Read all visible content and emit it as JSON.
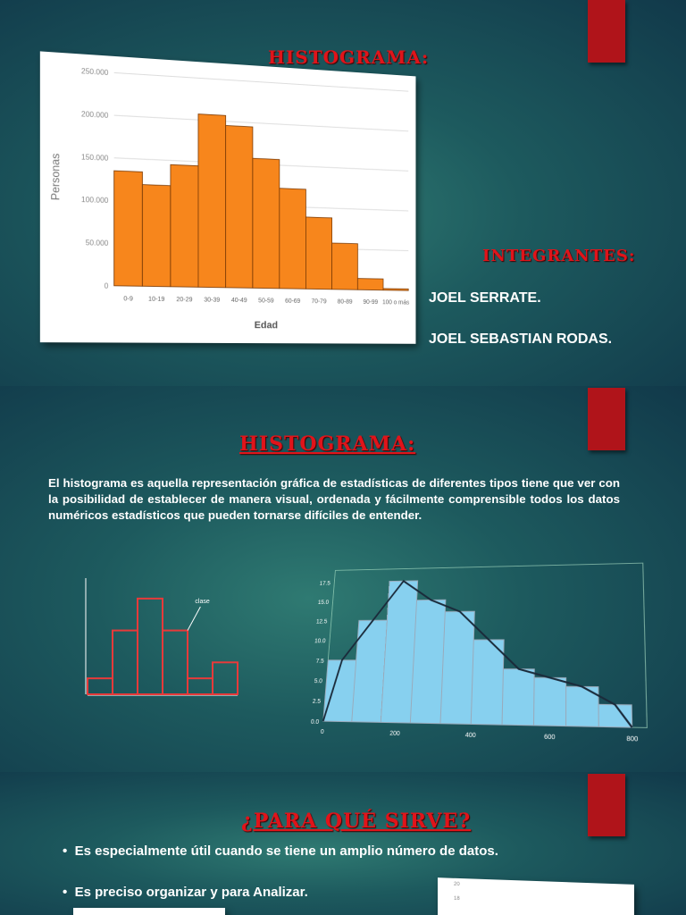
{
  "slide1": {
    "title": "HISTOGRAMA:",
    "members_title": "INTEGRANTES:",
    "members": [
      "JOEL SERRATE.",
      "JOEL SEBASTIAN  RODAS."
    ]
  },
  "slide2": {
    "title": "HISTOGRAMA:",
    "paragraph": "El histograma es aquella representación gráfica de estadísticas de diferentes tipos tiene que ver con la posibilidad de establecer de manera visual, ordenada y fácilmente comprensible todos los datos numéricos estadísticos que pueden tornarse difíciles de entender."
  },
  "slide3": {
    "title": "¿PARA QUÉ SIRVE?",
    "bullets": [
      "Es especialmente útil cuando se tiene un amplio número de datos.",
      "Es preciso organizar y para Analizar."
    ],
    "partial_ticks": [
      "20",
      "18"
    ]
  },
  "colors": {
    "accent_red": "#b0141a",
    "title_red": "#e0141a",
    "bar_orange": "#f7861c",
    "bar_blue": "#87d0ef",
    "outline_red": "#e83a3a"
  },
  "chart_data": [
    {
      "type": "bar",
      "xlabel": "Edad",
      "ylabel": "Personas",
      "categories": [
        "0-9",
        "10-19",
        "20-29",
        "30-39",
        "40-49",
        "50-59",
        "60-69",
        "70-79",
        "80-89",
        "90-99",
        "100 o más"
      ],
      "values": [
        135000,
        120000,
        145000,
        207000,
        195000,
        157000,
        122000,
        88000,
        57000,
        14000,
        2000
      ],
      "ylim": [
        0,
        250000
      ],
      "yticks": [
        "0",
        "50.000",
        "100.000",
        "150.000",
        "200.000",
        "250.000"
      ],
      "grid": true
    },
    {
      "type": "bar",
      "values": [
        1,
        4,
        6,
        4,
        1,
        2
      ],
      "ylim": [
        0,
        7
      ],
      "annotation": "clase"
    },
    {
      "type": "bar",
      "values": [
        7.5,
        12.5,
        17.5,
        15,
        13.5,
        10,
        6.5,
        5.5,
        4.5,
        2.5
      ],
      "ylim": [
        0,
        17.5
      ],
      "yticks": [
        "0.0",
        "2.5",
        "5.0",
        "7.5",
        "10.0",
        "12.5",
        "15.0",
        "17.5"
      ],
      "xticks": [
        "0",
        "200",
        "400",
        "600",
        "800"
      ],
      "polygon": true
    }
  ]
}
